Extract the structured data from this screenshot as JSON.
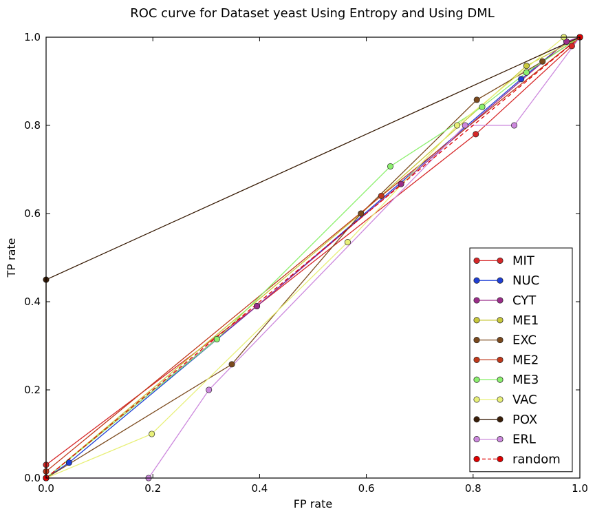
{
  "chart_data": {
    "type": "line",
    "title": "ROC curve for Dataset yeast Using Entropy and Using DML",
    "xlabel": "FP rate",
    "ylabel": "TP rate",
    "xlim": [
      0.0,
      1.0
    ],
    "ylim": [
      0.0,
      1.0
    ],
    "xticks": [
      "0.0",
      "0.2",
      "0.4",
      "0.6",
      "0.8",
      "1.0"
    ],
    "yticks": [
      "0.0",
      "0.2",
      "0.4",
      "0.6",
      "0.8",
      "1.0"
    ],
    "grid": false,
    "legend_position": "lower right",
    "series": [
      {
        "name": "MIT",
        "color": "#d62728",
        "points": [
          [
            0,
            0
          ],
          [
            0,
            0.03
          ],
          [
            0.395,
            0.39
          ],
          [
            0.805,
            0.78
          ],
          [
            0.985,
            0.98
          ],
          [
            1,
            1
          ]
        ]
      },
      {
        "name": "NUC",
        "color": "#1f3fd6",
        "points": [
          [
            0,
            0
          ],
          [
            0.043,
            0.035
          ],
          [
            0.395,
            0.39
          ],
          [
            0.89,
            0.905
          ],
          [
            0.975,
            0.99
          ],
          [
            1,
            1
          ]
        ]
      },
      {
        "name": "CYT",
        "color": "#9b2d8a",
        "points": [
          [
            0,
            0
          ],
          [
            0.395,
            0.39
          ],
          [
            0.665,
            0.667
          ],
          [
            0.975,
            0.99
          ],
          [
            1,
            1
          ]
        ]
      },
      {
        "name": "ME1",
        "color": "#c8c83c",
        "points": [
          [
            0,
            0
          ],
          [
            0.59,
            0.6
          ],
          [
            0.9,
            0.935
          ],
          [
            1,
            1
          ]
        ]
      },
      {
        "name": "EXC",
        "color": "#7b4a1e",
        "points": [
          [
            0,
            0
          ],
          [
            0.348,
            0.258
          ],
          [
            0.59,
            0.6
          ],
          [
            0.807,
            0.858
          ],
          [
            0.93,
            0.945
          ],
          [
            1,
            1
          ]
        ]
      },
      {
        "name": "ME2",
        "color": "#c0391b",
        "points": [
          [
            0,
            0
          ],
          [
            0,
            0.015
          ],
          [
            0.628,
            0.64
          ],
          [
            1,
            1
          ]
        ]
      },
      {
        "name": "ME3",
        "color": "#8cf06e",
        "points": [
          [
            0,
            0
          ],
          [
            0.32,
            0.315
          ],
          [
            0.645,
            0.707
          ],
          [
            0.817,
            0.842
          ],
          [
            0.9,
            0.92
          ],
          [
            1,
            1
          ]
        ]
      },
      {
        "name": "VAC",
        "color": "#e8f078",
        "points": [
          [
            0,
            0
          ],
          [
            0.198,
            0.1
          ],
          [
            0.565,
            0.535
          ],
          [
            0.77,
            0.8
          ],
          [
            0.97,
            1.0
          ],
          [
            1,
            1
          ]
        ]
      },
      {
        "name": "POX",
        "color": "#3a1e08",
        "points": [
          [
            0,
            0
          ],
          [
            0,
            0.45
          ],
          [
            1,
            1
          ]
        ]
      },
      {
        "name": "ERL",
        "color": "#cc88dd",
        "points": [
          [
            0,
            0
          ],
          [
            0.192,
            0
          ],
          [
            0.305,
            0.2
          ],
          [
            0.785,
            0.8
          ],
          [
            0.877,
            0.8
          ],
          [
            1,
            1
          ]
        ]
      },
      {
        "name": "random",
        "color": "#e00000",
        "dashed": true,
        "points": [
          [
            0,
            0
          ],
          [
            1,
            1
          ]
        ]
      }
    ]
  }
}
